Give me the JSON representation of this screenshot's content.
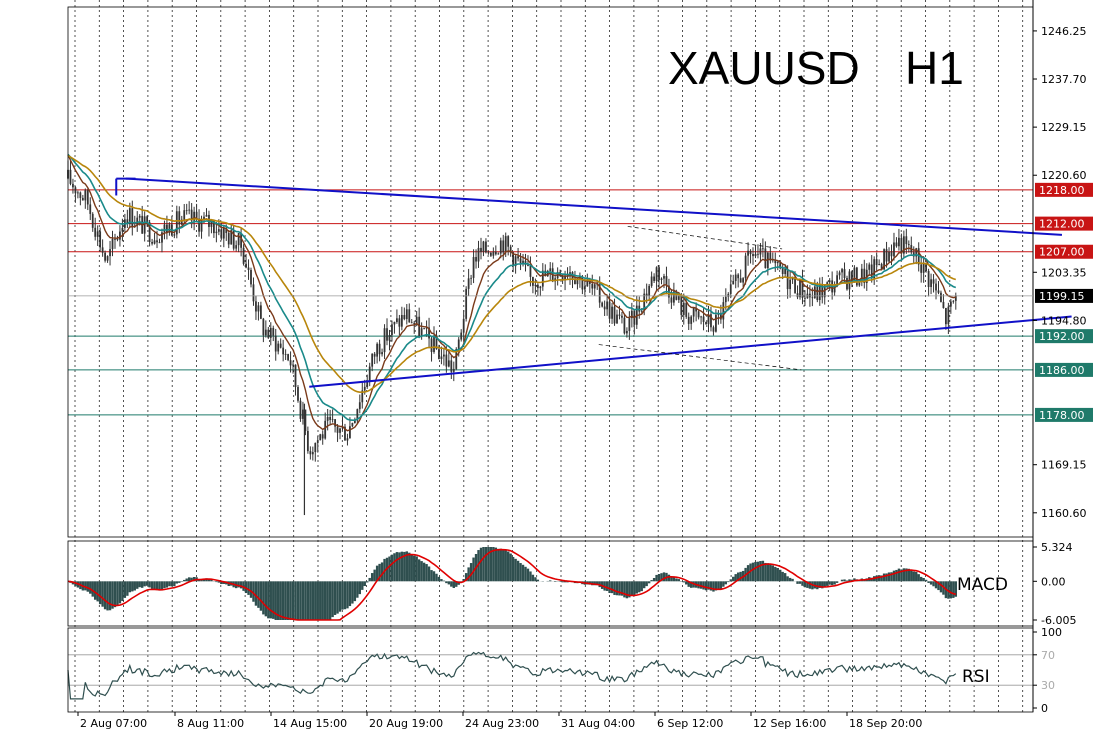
{
  "title": {
    "symbol": "XAUUSD",
    "timeframe": "H1"
  },
  "colors": {
    "background": "#ffffff",
    "candle": "#333333",
    "trendline": "#1010c8",
    "resistance": "#c81414",
    "support": "#1f7a6a",
    "ma_fast": "#7a3a1a",
    "ma_mid": "#1a8a8a",
    "ma_slow": "#b8860b",
    "macd_hist": "#2f4f4f",
    "macd_signal": "#e00000",
    "rsi_line": "#2f4f4f",
    "grid": "#000000"
  },
  "price_axis": {
    "ticks": [
      "1246.25",
      "1237.70",
      "1229.15",
      "1220.60",
      "1203.35",
      "1194.80",
      "1169.15",
      "1160.60"
    ],
    "current": "1199.15"
  },
  "levels": [
    {
      "price": 1218.0,
      "label": "1218.00",
      "kind": "resistance"
    },
    {
      "price": 1212.0,
      "label": "1212.00",
      "kind": "resistance"
    },
    {
      "price": 1207.0,
      "label": "1207.00",
      "kind": "resistance"
    },
    {
      "price": 1192.0,
      "label": "1192.00",
      "kind": "support"
    },
    {
      "price": 1186.0,
      "label": "1186.00",
      "kind": "support"
    },
    {
      "price": 1178.0,
      "label": "1178.00",
      "kind": "support"
    }
  ],
  "x_axis": {
    "labels": [
      "2 Aug 07:00",
      "8 Aug 11:00",
      "14 Aug 15:00",
      "20 Aug 19:00",
      "24 Aug 23:00",
      "31 Aug 04:00",
      "6 Sep 12:00",
      "12 Sep 16:00",
      "18 Sep 20:00"
    ]
  },
  "macd": {
    "label": "MACD",
    "ticks": [
      "5.324",
      "0.00",
      "-6.005"
    ]
  },
  "rsi": {
    "label": "RSI",
    "ticks": [
      "100",
      "70",
      "30",
      "0"
    ]
  },
  "chart_data": {
    "type": "line",
    "title": "XAUUSD H1",
    "x_tick_labels": [
      "2 Aug 07:00",
      "8 Aug 11:00",
      "14 Aug 15:00",
      "20 Aug 19:00",
      "24 Aug 23:00",
      "31 Aug 04:00",
      "6 Sep 12:00",
      "12 Sep 16:00",
      "18 Sep 20:00"
    ],
    "ylim": [
      1156.3,
      1250.5
    ],
    "price_path": [
      {
        "t": 0.0,
        "p": 1220.0
      },
      {
        "t": 0.02,
        "p": 1216.0
      },
      {
        "t": 0.04,
        "p": 1205.0
      },
      {
        "t": 0.06,
        "p": 1214.0
      },
      {
        "t": 0.09,
        "p": 1210.0
      },
      {
        "t": 0.12,
        "p": 1213.0
      },
      {
        "t": 0.15,
        "p": 1212.0
      },
      {
        "t": 0.18,
        "p": 1208.0
      },
      {
        "t": 0.2,
        "p": 1194.0
      },
      {
        "t": 0.23,
        "p": 1188.0
      },
      {
        "t": 0.25,
        "p": 1172.0
      },
      {
        "t": 0.27,
        "p": 1176.0
      },
      {
        "t": 0.29,
        "p": 1175.0
      },
      {
        "t": 0.32,
        "p": 1190.0
      },
      {
        "t": 0.35,
        "p": 1196.0
      },
      {
        "t": 0.38,
        "p": 1190.0
      },
      {
        "t": 0.4,
        "p": 1186.0
      },
      {
        "t": 0.42,
        "p": 1206.0
      },
      {
        "t": 0.45,
        "p": 1209.0
      },
      {
        "t": 0.48,
        "p": 1202.0
      },
      {
        "t": 0.52,
        "p": 1204.0
      },
      {
        "t": 0.55,
        "p": 1199.0
      },
      {
        "t": 0.58,
        "p": 1193.0
      },
      {
        "t": 0.61,
        "p": 1204.0
      },
      {
        "t": 0.64,
        "p": 1196.0
      },
      {
        "t": 0.67,
        "p": 1194.0
      },
      {
        "t": 0.71,
        "p": 1207.0
      },
      {
        "t": 0.74,
        "p": 1203.0
      },
      {
        "t": 0.77,
        "p": 1199.0
      },
      {
        "t": 0.8,
        "p": 1202.0
      },
      {
        "t": 0.83,
        "p": 1203.0
      },
      {
        "t": 0.86,
        "p": 1209.0
      },
      {
        "t": 0.88,
        "p": 1206.0
      },
      {
        "t": 0.9,
        "p": 1200.0
      },
      {
        "t": 0.91,
        "p": 1195.0
      },
      {
        "t": 0.92,
        "p": 1199.15
      }
    ],
    "trendlines": [
      {
        "name": "upper",
        "from": {
          "t": 0.06,
          "p": 1220.0
        },
        "to": {
          "t": 1.03,
          "p": 1210.0
        }
      },
      {
        "name": "lower",
        "from": {
          "t": 0.25,
          "p": 1183.0
        },
        "to": {
          "t": 1.04,
          "p": 1195.5
        }
      }
    ],
    "macd_range": [
      -6.005,
      5.324
    ],
    "rsi_range": [
      0,
      100
    ]
  }
}
